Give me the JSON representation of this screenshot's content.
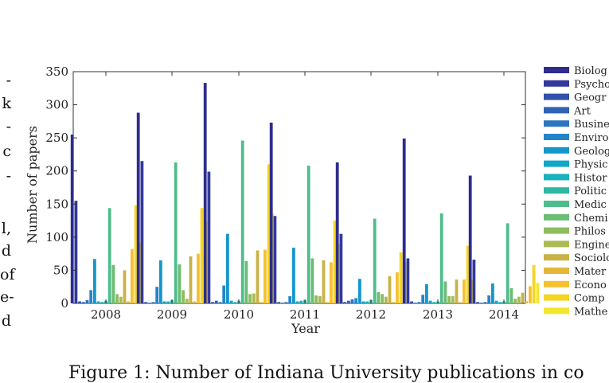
{
  "side_text": [
    "-",
    "k",
    "-",
    "c",
    "-",
    "l,",
    "d",
    "of",
    "e-",
    "d"
  ],
  "caption": "Figure 1: Number of Indiana University publications in co",
  "chart_data": {
    "type": "bar",
    "xlabel": "Year",
    "ylabel": "Number of papers",
    "ylim": [
      0,
      350
    ],
    "yticks": [
      0,
      50,
      100,
      150,
      200,
      250,
      300,
      350
    ],
    "categories": [
      "2008",
      "2009",
      "2010",
      "2011",
      "2012",
      "2013",
      "2014"
    ],
    "legend_position": "right",
    "series": [
      {
        "name": "Biolog",
        "color": "#2e2c8c",
        "values": [
          255,
          288,
          333,
          273,
          213,
          249,
          193
        ]
      },
      {
        "name": "Psycho",
        "color": "#33399a",
        "values": [
          155,
          215,
          199,
          132,
          105,
          68,
          66
        ]
      },
      {
        "name": "Geogr",
        "color": "#2f52a8",
        "values": [
          3,
          2,
          2,
          2,
          2,
          3,
          2
        ]
      },
      {
        "name": "Art",
        "color": "#2f62b2",
        "values": [
          2,
          1,
          4,
          1,
          4,
          1,
          1
        ]
      },
      {
        "name": "Busine",
        "color": "#2d74c0",
        "values": [
          5,
          2,
          2,
          2,
          6,
          2,
          2
        ]
      },
      {
        "name": "Enviro",
        "color": "#2385c9",
        "values": [
          20,
          25,
          27,
          11,
          8,
          13,
          12
        ]
      },
      {
        "name": "Geolog",
        "color": "#1596cb",
        "values": [
          67,
          65,
          105,
          84,
          37,
          29,
          30
        ]
      },
      {
        "name": "Physic",
        "color": "#11a7c8",
        "values": [
          3,
          3,
          4,
          3,
          3,
          4,
          4
        ]
      },
      {
        "name": "Histor",
        "color": "#17b2bb",
        "values": [
          2,
          3,
          2,
          4,
          3,
          2,
          2
        ]
      },
      {
        "name": "Politic",
        "color": "#2fb7a2",
        "values": [
          4,
          5,
          4,
          5,
          5,
          3,
          3
        ]
      },
      {
        "name": "Medic",
        "color": "#4fbc8c",
        "values": [
          144,
          213,
          246,
          208,
          128,
          136,
          121
        ]
      },
      {
        "name": "Chemi",
        "color": "#6cbd73",
        "values": [
          58,
          59,
          64,
          68,
          17,
          33,
          23
        ]
      },
      {
        "name": "Philos",
        "color": "#8ebd5e",
        "values": [
          14,
          20,
          14,
          12,
          14,
          11,
          7
        ]
      },
      {
        "name": "Engine",
        "color": "#abba53",
        "values": [
          10,
          7,
          15,
          11,
          10,
          11,
          10
        ]
      },
      {
        "name": "Sociolo",
        "color": "#c9b247",
        "values": [
          50,
          71,
          80,
          65,
          41,
          36,
          16
        ]
      },
      {
        "name": "Mater",
        "color": "#e4b73a",
        "values": [
          3,
          3,
          2,
          2,
          2,
          2,
          3
        ]
      },
      {
        "name": "Econo",
        "color": "#f6c031",
        "values": [
          82,
          75,
          81,
          62,
          47,
          36,
          26
        ]
      },
      {
        "name": "Comp",
        "color": "#f5d524",
        "values": [
          148,
          144,
          210,
          125,
          77,
          87,
          58
        ]
      },
      {
        "name": "Mathe",
        "color": "#f3e62f",
        "values": [
          92,
          123,
          136,
          90,
          62,
          36,
          31
        ]
      }
    ]
  }
}
